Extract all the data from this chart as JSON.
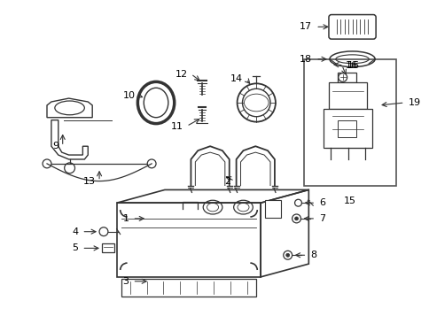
{
  "background_color": "#ffffff",
  "line_color": "#333333",
  "text_color": "#000000",
  "figsize": [
    4.85,
    3.57
  ],
  "dpi": 100
}
